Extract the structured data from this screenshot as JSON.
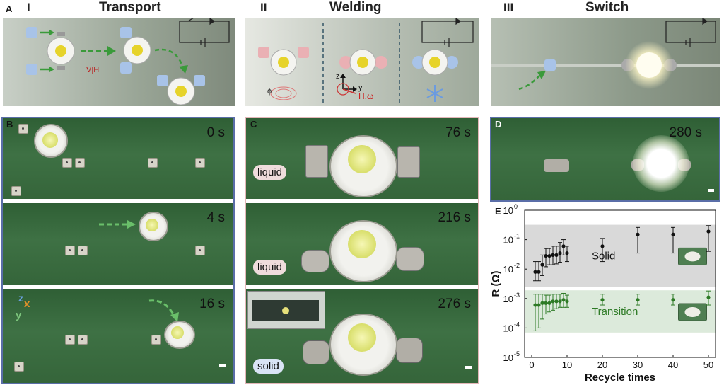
{
  "panel_letters": {
    "A": "A",
    "B": "B",
    "C": "C",
    "D": "D",
    "E": "E"
  },
  "sections": [
    {
      "numeral": "I",
      "title": "Transport"
    },
    {
      "numeral": "II",
      "title": "Welding"
    },
    {
      "numeral": "III",
      "title": "Switch"
    }
  ],
  "schematic_labels": {
    "grad_h": "∇|H|",
    "phi": "ϕ",
    "axis_z": "z",
    "axis_y": "y",
    "h_omega": "H,ω"
  },
  "panel_b": {
    "times": [
      "0 s",
      "4 s",
      "16 s"
    ],
    "axes": {
      "z": "z",
      "x": "x",
      "y": "y"
    }
  },
  "panel_c": {
    "times": [
      "76 s",
      "216 s",
      "276 s"
    ],
    "states": [
      "liquid",
      "liquid",
      "solid"
    ]
  },
  "panel_d": {
    "time": "280 s"
  },
  "colors": {
    "schematic_bg": "#8f9a8c",
    "board": "#3c6e42",
    "solid_band": "#d9d9d9",
    "transition_band": "#dceadb",
    "series_solid": "#111111",
    "series_transition": "#2d7a25",
    "frame_b": "#5a6ea8",
    "frame_c": "#e3b6b8",
    "frame_d": "#5a6ea8"
  },
  "chart_data": {
    "type": "scatter",
    "xlabel": "Recycle times",
    "ylabel": "R (Ω)",
    "yscale": "log",
    "ylim": [
      1e-05,
      1
    ],
    "xlim": [
      -2,
      52
    ],
    "xticks": [
      0,
      10,
      20,
      30,
      40,
      50
    ],
    "xtick_labels": [
      "0",
      "10",
      "20",
      "30",
      "40",
      "50"
    ],
    "yticks": [
      1,
      0.1,
      0.01,
      0.001,
      0.0001,
      1e-05
    ],
    "ytick_labels": [
      "10^0",
      "10^-1",
      "10^-2",
      "10^-3",
      "10^-4",
      "10^-5"
    ],
    "bands": [
      {
        "label": "Solid",
        "range": [
          0.0025,
          0.32
        ]
      },
      {
        "label": "Transition",
        "range": [
          7e-05,
          0.0019
        ]
      }
    ],
    "series": [
      {
        "name": "Solid",
        "x": [
          1,
          2,
          3,
          4,
          5,
          6,
          7,
          8,
          9,
          10,
          20,
          30,
          40,
          50
        ],
        "y": [
          0.008,
          0.008,
          0.014,
          0.028,
          0.028,
          0.03,
          0.03,
          0.035,
          0.06,
          0.035,
          0.06,
          0.15,
          0.15,
          0.19
        ],
        "lo": [
          0.004,
          0.004,
          0.006,
          0.012,
          0.014,
          0.014,
          0.015,
          0.017,
          0.03,
          0.018,
          0.018,
          0.035,
          0.035,
          0.04
        ],
        "hi": [
          0.018,
          0.018,
          0.03,
          0.05,
          0.05,
          0.06,
          0.06,
          0.08,
          0.1,
          0.06,
          0.11,
          0.26,
          0.26,
          0.3
        ]
      },
      {
        "name": "Transition",
        "x": [
          1,
          2,
          3,
          4,
          5,
          6,
          7,
          8,
          9,
          10,
          20,
          30,
          40,
          50
        ],
        "y": [
          0.0006,
          0.0006,
          0.0007,
          0.0007,
          0.0007,
          0.0008,
          0.0008,
          0.0008,
          0.0009,
          0.0008,
          0.0009,
          0.0009,
          0.0009,
          0.0011
        ],
        "lo": [
          8e-05,
          0.0001,
          0.0002,
          0.0003,
          0.00035,
          0.0004,
          0.00045,
          0.0005,
          0.0005,
          0.0005,
          0.0006,
          0.0006,
          0.0006,
          0.0006
        ],
        "hi": [
          0.0014,
          0.0014,
          0.0014,
          0.0013,
          0.0013,
          0.0014,
          0.0014,
          0.0014,
          0.0015,
          0.0013,
          0.0014,
          0.0014,
          0.0014,
          0.0018
        ]
      }
    ]
  }
}
